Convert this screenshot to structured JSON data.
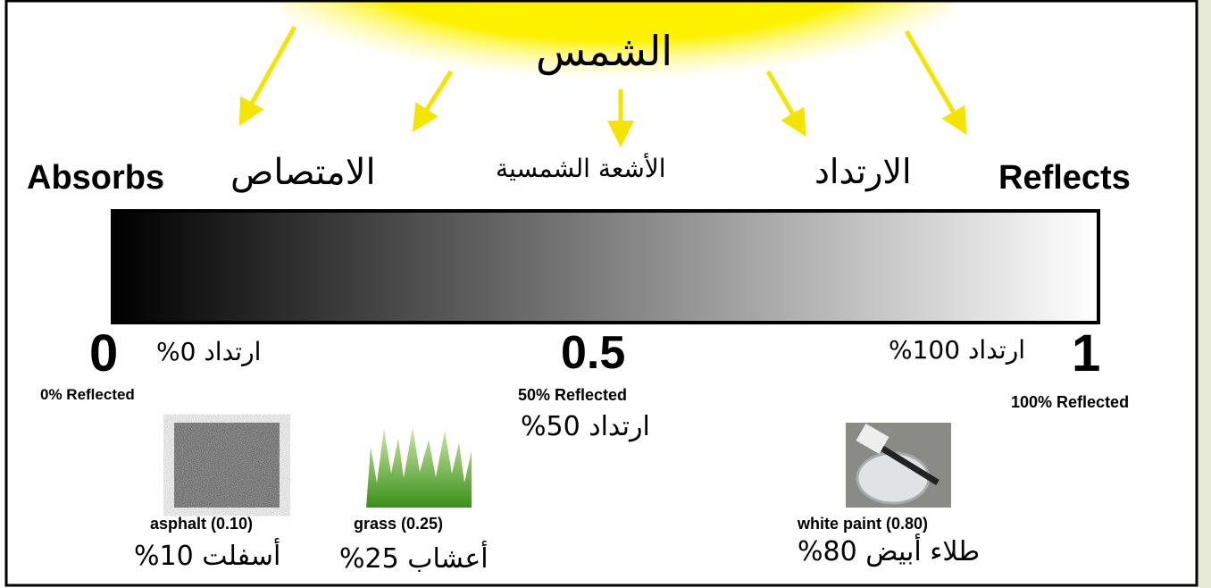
{
  "sun": {
    "label": "الشمس"
  },
  "header": {
    "absorbs": "Absorbs",
    "absorption_ar": "الامتصاص",
    "solar_rays_ar": "الأشعة الشمسية",
    "reflection_ar": "الارتداد",
    "reflects": "Reflects"
  },
  "scale": {
    "low": {
      "value": "0",
      "label_ar": "ارتداد 0%",
      "caption": "0% Reflected"
    },
    "mid": {
      "value": "0.5",
      "caption": "50% Reflected",
      "label_ar": "ارتداد 50%"
    },
    "high": {
      "value": "1",
      "label_ar": "ارتداد 100%",
      "caption": "100% Reflected"
    }
  },
  "materials": [
    {
      "label": "asphalt (0.10)",
      "label_ar": "أسفلت 10%"
    },
    {
      "label": "grass (0.25)",
      "label_ar": "أعشاب 25%"
    },
    {
      "label": "white paint (0.80)",
      "label_ar": "طلاء أبيض 80%"
    }
  ]
}
